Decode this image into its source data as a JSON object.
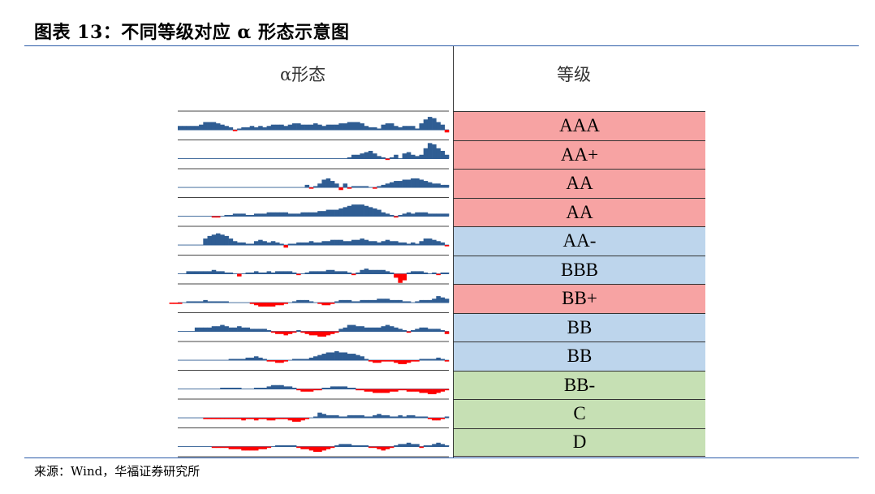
{
  "title": "图表 13：不同等级对应 α 形态示意图",
  "headers": {
    "alpha": "α形态",
    "grade": "等级"
  },
  "source": "来源：Wind，华福证券研究所",
  "colors": {
    "pink": "#f7a3a3",
    "blue": "#bdd5ec",
    "green": "#c6e0b4",
    "bar_pos": "#2f5d93",
    "bar_neg": "#ff0000"
  },
  "grades": [
    {
      "label": "AAA",
      "color": "pink"
    },
    {
      "label": "AA+",
      "color": "pink"
    },
    {
      "label": "AA",
      "color": "pink"
    },
    {
      "label": "AA",
      "color": "pink"
    },
    {
      "label": "AA-",
      "color": "blue"
    },
    {
      "label": "BBB",
      "color": "blue"
    },
    {
      "label": "BB+",
      "color": "pink"
    },
    {
      "label": "BB",
      "color": "blue"
    },
    {
      "label": "BB",
      "color": "blue"
    },
    {
      "label": "BB-",
      "color": "green"
    },
    {
      "label": "C",
      "color": "green"
    },
    {
      "label": "D",
      "color": "green"
    }
  ],
  "chart_data": {
    "type": "bar",
    "series": [
      {
        "values": [
          3,
          3,
          3,
          3,
          3,
          4,
          6,
          6,
          6,
          5,
          4,
          3,
          2,
          -1,
          1,
          2,
          2,
          3,
          2,
          3,
          2,
          3,
          4,
          4,
          4,
          3,
          4,
          5,
          5,
          4,
          4,
          4,
          5,
          4,
          3,
          4,
          4,
          4,
          5,
          5,
          6,
          6,
          6,
          5,
          3,
          2,
          2,
          1,
          4,
          5,
          5,
          3,
          2,
          3,
          3,
          3,
          1,
          5,
          8,
          10,
          9,
          6,
          4,
          -2
        ]
      },
      {
        "values": [
          0,
          0,
          0,
          0,
          0,
          0,
          0,
          0,
          0,
          0,
          0,
          0,
          0,
          0,
          0,
          0,
          0,
          0,
          0,
          0,
          0,
          0,
          0,
          0,
          0,
          0,
          0,
          0,
          0,
          0,
          0,
          0,
          0,
          0,
          0,
          0,
          0,
          0,
          0,
          0,
          0,
          0,
          0,
          0,
          0,
          0,
          0,
          0,
          0,
          0,
          0,
          0,
          1,
          3,
          3,
          4,
          5,
          6,
          4,
          2,
          1,
          -1,
          1,
          3,
          0,
          4,
          5,
          3,
          2,
          3,
          8,
          12,
          11,
          8,
          6,
          3
        ]
      },
      {
        "values": [
          0,
          0,
          0,
          0,
          0,
          0,
          0,
          0,
          0,
          0,
          0,
          0,
          0,
          0,
          0,
          0,
          0,
          0,
          0,
          0,
          0,
          0,
          0,
          0,
          0,
          0,
          0,
          0,
          0,
          0,
          0,
          0,
          0,
          0,
          0,
          0,
          0,
          2,
          -1,
          1,
          3,
          6,
          7,
          5,
          3,
          -2,
          3,
          -1,
          1,
          1,
          1,
          1,
          0,
          -1,
          1,
          2,
          3,
          4,
          5,
          5,
          6,
          6,
          7,
          7,
          6,
          5,
          4,
          3,
          3,
          2,
          2
        ]
      },
      {
        "values": [
          -1,
          -1,
          0,
          1,
          1,
          2,
          2,
          2,
          1,
          1,
          2,
          2,
          2,
          3,
          3,
          3,
          3,
          3,
          2,
          2,
          2,
          3,
          3,
          3,
          3,
          4,
          4,
          5,
          5,
          5,
          6,
          7,
          8,
          9,
          9,
          9,
          8,
          7,
          6,
          5,
          3,
          2,
          1,
          -1,
          1,
          2,
          3,
          2,
          3,
          3,
          3,
          2,
          2,
          2,
          2,
          2
        ]
      },
      {
        "values": [
          5,
          7,
          8,
          9,
          8,
          7,
          5,
          3,
          2,
          2,
          1,
          1,
          3,
          4,
          3,
          2,
          3,
          2,
          1,
          -2,
          1,
          1,
          2,
          2,
          2,
          3,
          2,
          2,
          3,
          3,
          4,
          4,
          4,
          3,
          3,
          4,
          4,
          5,
          4,
          3,
          3,
          2,
          3,
          4,
          3,
          3,
          2,
          2,
          1,
          2,
          1,
          3,
          5,
          5,
          4,
          3,
          2,
          -1
        ]
      },
      {
        "values": [
          2,
          2,
          2,
          2,
          2,
          2,
          3,
          2,
          2,
          1,
          1,
          0,
          -2,
          0,
          1,
          1,
          2,
          1,
          1,
          2,
          1,
          2,
          2,
          2,
          2,
          1,
          -1,
          0,
          1,
          2,
          2,
          2,
          2,
          3,
          3,
          2,
          2,
          2,
          1,
          -1,
          1,
          3,
          4,
          3,
          3,
          3,
          3,
          2,
          1,
          -3,
          -7,
          -5,
          1,
          2,
          2,
          2,
          1,
          0,
          1,
          -1,
          1,
          1
        ]
      },
      {
        "values": [
          -1,
          -1,
          -1,
          0,
          1,
          1,
          1,
          1,
          2,
          1,
          1,
          1,
          1,
          1,
          0,
          0,
          0,
          0,
          0,
          -1,
          -2,
          -3,
          -3,
          -3,
          -3,
          -2,
          -2,
          -1,
          0,
          1,
          2,
          2,
          2,
          1,
          0,
          -1,
          -2,
          -2,
          -1,
          1,
          2,
          2,
          2,
          1,
          1,
          2,
          2,
          2,
          2,
          3,
          3,
          3,
          2,
          2,
          2,
          1,
          1,
          0,
          1,
          2,
          2,
          2,
          3,
          5,
          4,
          3
        ]
      },
      {
        "values": [
          3,
          3,
          3,
          3,
          4,
          4,
          5,
          4,
          3,
          3,
          4,
          3,
          3,
          2,
          2,
          2,
          2,
          1,
          -1,
          -2,
          -2,
          -3,
          -2,
          -1,
          1,
          -1,
          -2,
          -3,
          -3,
          -4,
          -4,
          -3,
          -2,
          -1,
          2,
          3,
          5,
          5,
          4,
          4,
          3,
          3,
          3,
          3,
          4,
          5,
          4,
          3,
          2,
          1,
          -1,
          1,
          2,
          3,
          3,
          2,
          2,
          2,
          1,
          -2
        ]
      },
      {
        "values": [
          1,
          1,
          1,
          1,
          2,
          2,
          3,
          2,
          1,
          -1,
          -1,
          -2,
          -2,
          -1,
          0,
          1,
          1,
          1,
          1,
          2,
          3,
          4,
          5,
          6,
          6,
          7,
          6,
          6,
          5,
          5,
          4,
          3,
          1,
          -1,
          -2,
          -2,
          -1,
          -1,
          -1,
          -2,
          -3,
          -3,
          -2,
          -1,
          -1,
          1,
          1,
          1,
          1,
          2,
          1,
          -1
        ]
      },
      {
        "values": [
          1,
          1,
          1,
          1,
          1,
          0,
          0,
          0,
          1,
          1,
          1,
          2,
          3,
          3,
          3,
          2,
          2,
          1,
          -1,
          -2,
          -2,
          -2,
          -1,
          -1,
          1,
          1,
          2,
          2,
          2,
          2,
          1,
          1,
          -1,
          -1,
          -2,
          -2,
          -3,
          -3,
          -3,
          -3,
          -2,
          -2,
          -1,
          -1,
          -2,
          -2,
          -2,
          -3,
          -3,
          -4,
          -4,
          -3,
          -2,
          -1
        ]
      },
      {
        "values": [
          -1,
          -1,
          -1,
          -1,
          -1,
          -1,
          -1,
          -1,
          -1,
          -2,
          -1,
          -1,
          -2,
          -1,
          -1,
          -2,
          -2,
          -1,
          -1,
          -1,
          -2,
          -3,
          -3,
          -2,
          -1,
          0,
          1,
          4,
          3,
          2,
          2,
          2,
          1,
          1,
          2,
          2,
          2,
          2,
          1,
          1,
          2,
          3,
          2,
          2,
          1,
          1,
          2,
          1,
          2,
          2,
          1,
          1,
          1,
          -1,
          -2,
          -2,
          -1,
          1
        ]
      },
      {
        "values": [
          -1,
          -1,
          -1,
          -1,
          -2,
          -2,
          -2,
          -3,
          -3,
          -3,
          -3,
          -2,
          -2,
          -1,
          0,
          1,
          1,
          1,
          1,
          1,
          -1,
          -2,
          -2,
          -3,
          -4,
          -4,
          -3,
          -2,
          -1,
          1,
          2,
          2,
          2,
          1,
          1,
          1,
          1,
          -1,
          -1,
          -2,
          -3,
          -2,
          -1,
          1,
          2,
          2,
          3,
          2,
          2,
          -1,
          1,
          1,
          2,
          3,
          2,
          1
        ]
      }
    ]
  }
}
